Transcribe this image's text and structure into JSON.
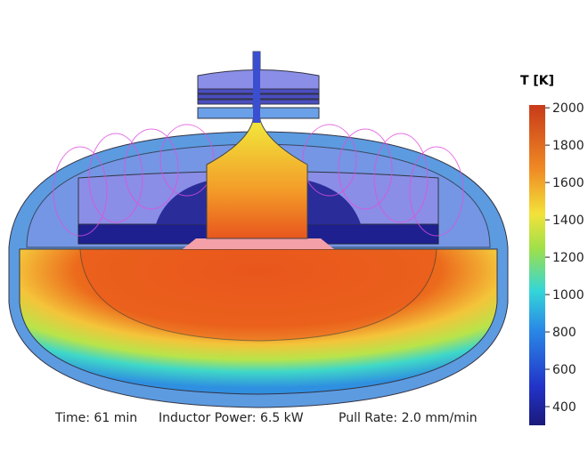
{
  "colorbar": {
    "title": "T [K]",
    "lim": [
      300,
      2015
    ],
    "ticks": [
      400,
      600,
      800,
      1000,
      1200,
      1400,
      1600,
      1800,
      2000
    ]
  },
  "caption": {
    "time": "Time: 61 min",
    "power": "Inductor Power: 6.5 kW",
    "pull_rate": "Pull Rate: 2.0 mm/min"
  }
}
